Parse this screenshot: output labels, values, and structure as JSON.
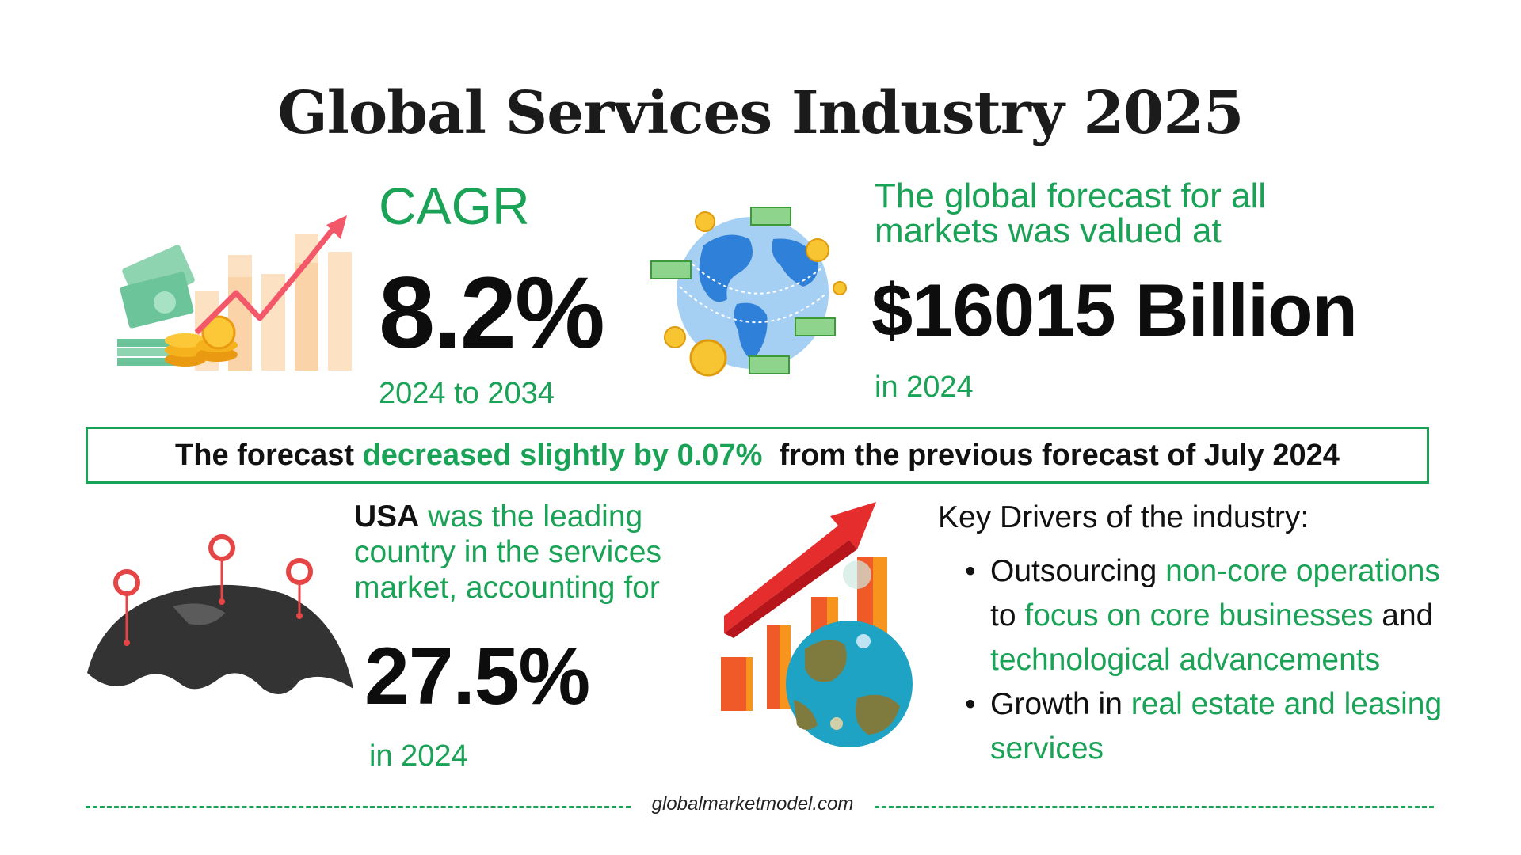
{
  "title": "Global Services Industry 2025",
  "cagr": {
    "label": "CAGR",
    "value": "8.2%",
    "period": "2024 to 2034"
  },
  "forecast": {
    "label": "The global forecast for all markets was valued at",
    "value": "$16015 Billion",
    "year": "in 2024"
  },
  "banner": {
    "prefix": "The forecast ",
    "highlight": "decreased slightly by 0.07%",
    "suffix": "  from the previous forecast of July 2024"
  },
  "usa": {
    "lead": "USA",
    "text": " was the leading country in the services market, accounting for",
    "value": "27.5%",
    "year": "in 2024"
  },
  "drivers": {
    "title": "Key Drivers of the industry:",
    "items": [
      {
        "parts": [
          {
            "text": "Outsourcing ",
            "green": false
          },
          {
            "text": "non-core operations",
            "green": true
          },
          {
            "text": " to ",
            "green": false
          },
          {
            "text": "focus on core businesses",
            "green": true
          },
          {
            "text": " and ",
            "green": false
          },
          {
            "text": "technological advancements",
            "green": true
          }
        ]
      },
      {
        "parts": [
          {
            "text": "Growth in ",
            "green": false
          },
          {
            "text": "real estate and leasing services",
            "green": true
          }
        ]
      }
    ]
  },
  "footer": {
    "site": "globalmarketmodel.com"
  },
  "colors": {
    "accent": "#1aa257",
    "text": "#111111",
    "bar_orange": "#f7941d",
    "arrow_red": "#e52d2d"
  },
  "icons": {
    "cagr": "money-growth-chart-icon",
    "forecast": "globe-money-icon",
    "usa": "world-map-pins-icon",
    "drivers": "globe-growth-chart-icon"
  }
}
